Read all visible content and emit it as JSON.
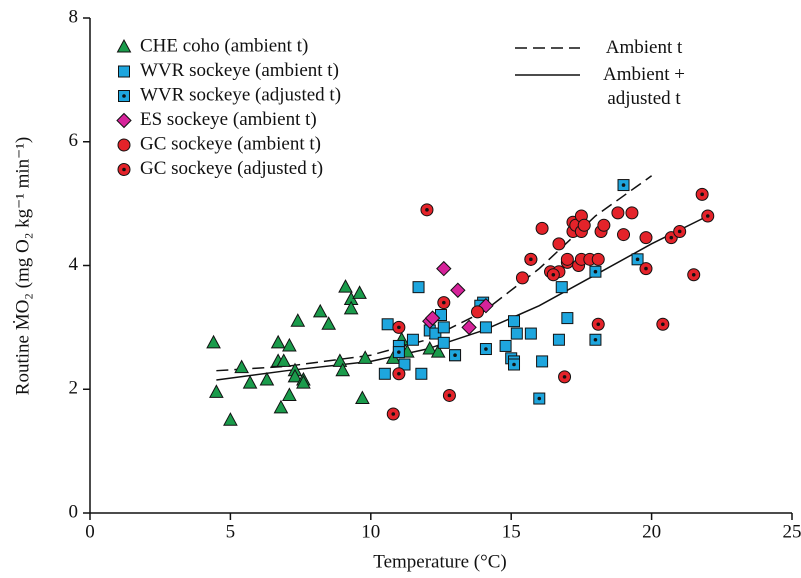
{
  "chart_data": {
    "type": "scatter",
    "x_label": "Temperature (°C)",
    "y_label": "Routine ṀO₂ (mg O₂ kg⁻¹ min⁻¹)",
    "xlim": [
      0,
      25
    ],
    "ylim": [
      0,
      8
    ],
    "xticks": [
      0,
      5,
      10,
      15,
      20,
      25
    ],
    "yticks": [
      0,
      2,
      4,
      6,
      8
    ],
    "grid": false,
    "legend": "upper left",
    "series": [
      {
        "name": "CHE coho (ambient t)",
        "color": "#1a9b4b",
        "marker": "triangle",
        "x": [
          4.4,
          4.5,
          5.0,
          5.4,
          5.7,
          6.3,
          6.7,
          6.7,
          6.9,
          7.1,
          6.8,
          7.1,
          7.3,
          7.4,
          7.3,
          7.6,
          7.6,
          8.2,
          8.5,
          8.9,
          9.0,
          9.1,
          9.3,
          9.3,
          9.6,
          9.8,
          9.7,
          10.8,
          11.1,
          11.3,
          12.1,
          12.4
        ],
        "values": [
          2.75,
          1.95,
          1.5,
          2.35,
          2.1,
          2.15,
          2.45,
          2.75,
          2.45,
          2.7,
          1.7,
          1.9,
          2.3,
          3.1,
          2.2,
          2.15,
          2.1,
          3.25,
          3.05,
          2.45,
          2.3,
          3.65,
          3.45,
          3.3,
          3.55,
          2.5,
          1.85,
          2.5,
          2.8,
          2.6,
          2.65,
          2.6
        ]
      },
      {
        "name": "WVR sockeye (ambient t)",
        "color": "#1ea6de",
        "marker": "square",
        "x": [
          10.6,
          10.5,
          11.0,
          11.2,
          11.5,
          11.7,
          11.8,
          12.1,
          12.3,
          12.5,
          12.6,
          13.0,
          14.0,
          14.1,
          14.8,
          15.0,
          15.1,
          15.1,
          15.7,
          16.1,
          16.7,
          16.8,
          17.0,
          12.6,
          13.9,
          15.2
        ],
        "values": [
          3.05,
          2.25,
          2.7,
          2.4,
          2.8,
          3.65,
          2.25,
          2.95,
          2.9,
          3.2,
          2.75,
          2.55,
          3.4,
          3.0,
          2.7,
          2.5,
          3.1,
          2.45,
          2.9,
          2.45,
          2.8,
          3.65,
          3.15,
          3.0,
          3.35,
          2.9
        ]
      },
      {
        "name": "WVR sockeye (adjusted t)",
        "color": "#1ea6de",
        "marker": "square-dot",
        "x": [
          11.0,
          13.0,
          14.1,
          15.1,
          16.0,
          18.0,
          18.0,
          19.0,
          19.5
        ],
        "values": [
          2.6,
          2.55,
          2.65,
          2.4,
          1.85,
          2.8,
          3.9,
          5.3,
          4.1
        ]
      },
      {
        "name": "ES sockeye (ambient t)",
        "color": "#d6239a",
        "marker": "diamond",
        "x": [
          12.1,
          12.2,
          12.6,
          13.1,
          13.5,
          14.1
        ],
        "values": [
          3.1,
          3.15,
          3.95,
          3.6,
          3.0,
          3.35
        ]
      },
      {
        "name": "GC sockeye (ambient t)",
        "color": "#e4232a",
        "marker": "circle",
        "x": [
          13.8,
          15.4,
          15.7,
          16.1,
          16.4,
          16.7,
          16.7,
          17.0,
          17.2,
          17.2,
          17.3,
          17.4,
          17.5,
          17.5,
          17.5,
          17.8,
          18.1,
          18.2,
          18.3,
          18.8,
          19.0,
          19.3,
          19.8,
          17.0,
          17.6
        ],
        "values": [
          3.25,
          3.8,
          4.1,
          4.6,
          3.9,
          3.9,
          4.35,
          4.05,
          4.55,
          4.7,
          4.65,
          4.0,
          4.8,
          4.55,
          4.1,
          4.1,
          4.1,
          4.55,
          4.65,
          4.85,
          4.5,
          4.85,
          4.45,
          4.1,
          4.65
        ]
      },
      {
        "name": "GC sockeye (adjusted t)",
        "color": "#e4232a",
        "marker": "circle-dot",
        "x": [
          10.8,
          11.0,
          11.0,
          12.0,
          12.6,
          12.8,
          15.7,
          16.5,
          16.9,
          18.1,
          19.8,
          20.4,
          20.7,
          21.0,
          21.5,
          21.8,
          22.0
        ],
        "values": [
          1.6,
          3.0,
          2.25,
          4.9,
          3.4,
          1.9,
          4.1,
          3.85,
          2.2,
          3.05,
          3.95,
          3.05,
          4.45,
          4.55,
          3.85,
          5.15,
          4.8
        ]
      }
    ],
    "lines": [
      {
        "name": "Ambient t",
        "color": "#111111",
        "dash": true,
        "x": [
          4.5,
          7,
          10,
          12,
          14,
          16,
          18,
          20
        ],
        "values": [
          2.3,
          2.37,
          2.55,
          2.8,
          3.25,
          3.95,
          4.8,
          5.45
        ]
      },
      {
        "name": "Ambient + adjusted t",
        "color": "#111111",
        "dash": false,
        "x": [
          4.5,
          7,
          10,
          12,
          14,
          16,
          18,
          20,
          22
        ],
        "values": [
          2.15,
          2.3,
          2.45,
          2.65,
          2.95,
          3.35,
          3.85,
          4.35,
          4.8
        ]
      }
    ]
  }
}
